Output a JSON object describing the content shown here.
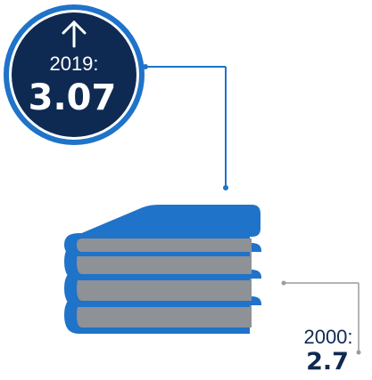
{
  "badge_2019": {
    "year": "2019:",
    "value": "3.07",
    "icon": "arrow-up-icon"
  },
  "label_2000": {
    "year": "2000:",
    "value": "2.7"
  },
  "graphic": {
    "icon": "stack-of-books-icon",
    "book_count": 4
  },
  "colors": {
    "navy": "#0f2a52",
    "blue": "#1f73c9",
    "book_pages": "#8e9196",
    "connector_blue": "#1f73c9",
    "connector_gray": "#9a9ca0"
  }
}
